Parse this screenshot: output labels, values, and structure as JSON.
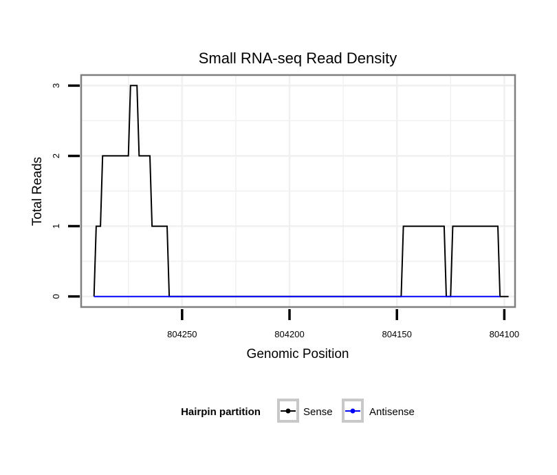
{
  "chart_data": {
    "type": "line",
    "title": "Small RNA-seq Read Density",
    "xlabel": "Genomic Position",
    "ylabel": "Total Reads",
    "x_reversed": true,
    "xlim": [
      804297,
      804095
    ],
    "ylim": [
      -0.15,
      3.15
    ],
    "x_ticks": [
      804250,
      804200,
      804150,
      804100
    ],
    "y_ticks": [
      0,
      1,
      2,
      3
    ],
    "grid": true,
    "legend": {
      "title": "Hairpin partition",
      "position": "bottom"
    },
    "series": [
      {
        "name": "Sense",
        "color": "#000000",
        "x": [
          804291,
          804290,
          804289,
          804288,
          804287,
          804286,
          804275,
          804274,
          804273,
          804272,
          804271,
          804270,
          804268,
          804267,
          804265,
          804264,
          804262,
          804257,
          804256,
          804254,
          804253,
          804148,
          804147,
          804128,
          804127,
          804126,
          804125,
          804124,
          804123,
          804122,
          804103,
          804102,
          804098
        ],
        "values": [
          0,
          1,
          1,
          1,
          2,
          2,
          2,
          3,
          3,
          3,
          3,
          2,
          2,
          2,
          2,
          1,
          1,
          1,
          0,
          0,
          0,
          0,
          1,
          1,
          0,
          0,
          0,
          1,
          1,
          1,
          1,
          0,
          0
        ]
      },
      {
        "name": "Antisense",
        "color": "#0000ff",
        "x": [
          804291,
          804253,
          804148,
          804127,
          804124,
          804102
        ],
        "values": [
          0,
          0,
          0,
          0,
          0,
          0
        ]
      }
    ]
  }
}
